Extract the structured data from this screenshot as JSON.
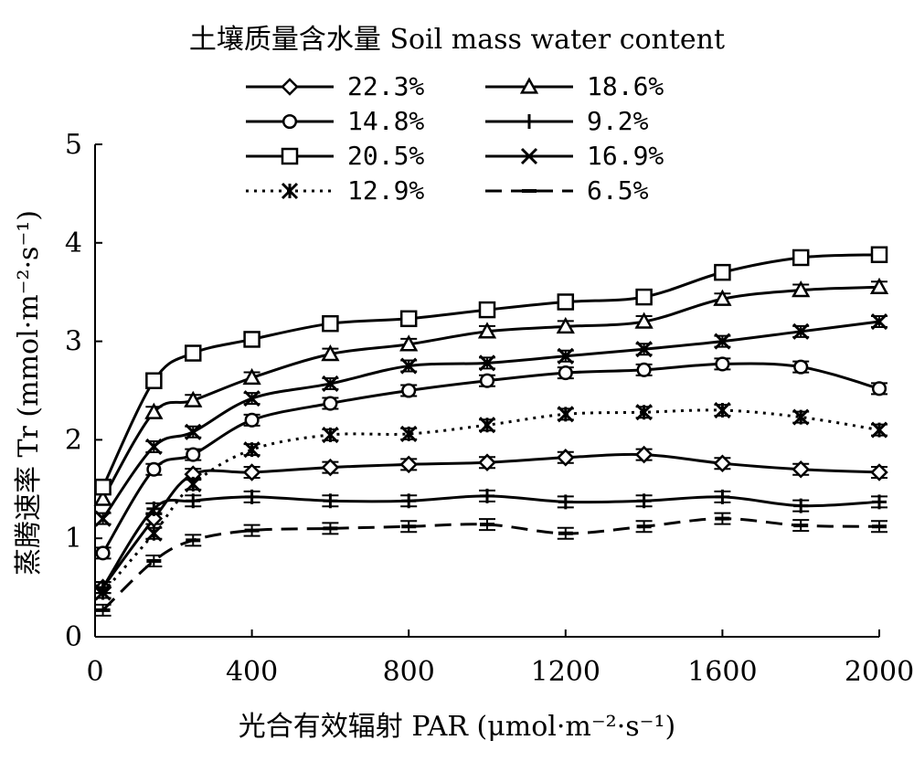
{
  "chart_data": {
    "type": "line",
    "legend_title": "土壤质量含水量 Soil mass water content",
    "xlabel": "光合有效辐射 PAR (μmol·m⁻²·s⁻¹)",
    "ylabel": "蒸腾速率 Tr (mmol·m⁻²·s⁻¹)",
    "xlim": [
      0,
      2000
    ],
    "ylim": [
      0,
      5
    ],
    "x_ticks": [
      "0",
      "400",
      "800",
      "1200",
      "1600",
      "2000"
    ],
    "y_ticks": [
      "0",
      "1",
      "2",
      "3",
      "4",
      "5"
    ],
    "legend_position": "top",
    "x": [
      20,
      150,
      250,
      400,
      600,
      800,
      1000,
      1200,
      1400,
      1600,
      1800,
      2000
    ],
    "series": [
      {
        "name": "22.3%",
        "marker": "diamond",
        "dash": "solid",
        "values": [
          0.5,
          1.2,
          1.65,
          1.67,
          1.72,
          1.75,
          1.77,
          1.82,
          1.85,
          1.76,
          1.7,
          1.67
        ]
      },
      {
        "name": "18.6%",
        "marker": "triangle",
        "dash": "solid",
        "values": [
          1.4,
          2.28,
          2.4,
          2.63,
          2.87,
          2.97,
          3.1,
          3.15,
          3.2,
          3.43,
          3.52,
          3.55
        ]
      },
      {
        "name": "14.8%",
        "marker": "circle",
        "dash": "solid",
        "values": [
          0.85,
          1.7,
          1.85,
          2.2,
          2.37,
          2.5,
          2.6,
          2.68,
          2.71,
          2.77,
          2.74,
          2.52
        ]
      },
      {
        "name": "9.2%",
        "marker": "plus",
        "dash": "solid",
        "values": [
          0.5,
          1.3,
          1.38,
          1.42,
          1.38,
          1.38,
          1.43,
          1.37,
          1.38,
          1.42,
          1.33,
          1.37
        ]
      },
      {
        "name": "20.5%",
        "marker": "square",
        "dash": "solid",
        "values": [
          1.52,
          2.6,
          2.88,
          3.02,
          3.18,
          3.23,
          3.32,
          3.4,
          3.45,
          3.7,
          3.85,
          3.88
        ]
      },
      {
        "name": "16.9%",
        "marker": "x",
        "dash": "solid",
        "values": [
          1.2,
          1.93,
          2.08,
          2.42,
          2.57,
          2.75,
          2.78,
          2.85,
          2.92,
          3.0,
          3.1,
          3.2
        ]
      },
      {
        "name": "12.9%",
        "marker": "asterisk",
        "dash": "dotted",
        "values": [
          0.45,
          1.05,
          1.55,
          1.9,
          2.05,
          2.06,
          2.15,
          2.26,
          2.28,
          2.3,
          2.23,
          2.1
        ]
      },
      {
        "name": "6.5%",
        "marker": "dash",
        "dash": "dashed",
        "values": [
          0.27,
          0.77,
          0.98,
          1.08,
          1.1,
          1.12,
          1.14,
          1.05,
          1.12,
          1.2,
          1.13,
          1.12
        ]
      }
    ]
  }
}
